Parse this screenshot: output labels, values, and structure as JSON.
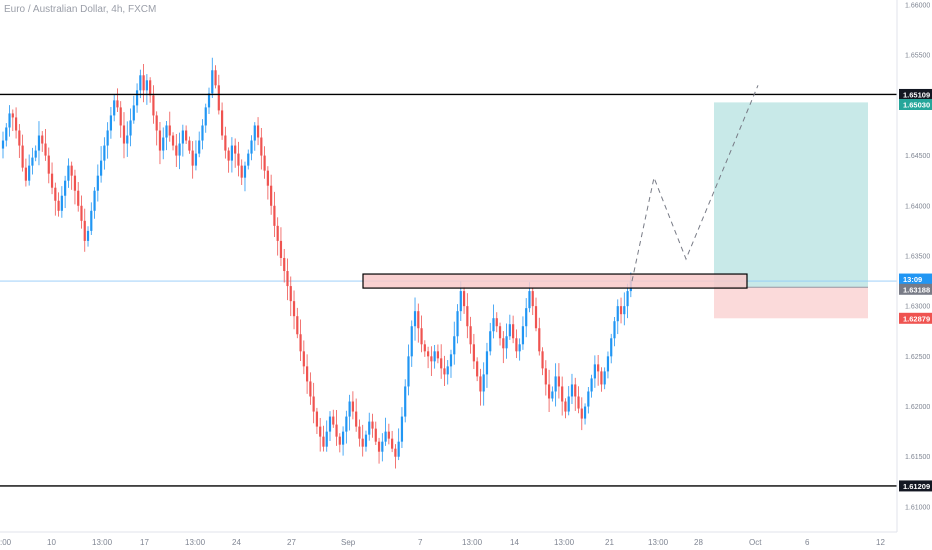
{
  "header": {
    "symbol_title": "Euro / Australian Dollar, 4h, FXCM"
  },
  "colors": {
    "up": "#2196f3",
    "down": "#ef5350",
    "level_line": "#000000",
    "current_line": "#90caf9",
    "target_zone": "#c8e9e8",
    "stop_zone": "#fbdada",
    "resistance_box": "#f8c9c9",
    "tag_black": "#131722",
    "tag_green": "#26a69a",
    "tag_blue": "#2196f3",
    "tag_gray": "#787b86",
    "tag_red": "#ef5350"
  },
  "price_axis": {
    "labels": [
      "1.66000",
      "1.65500",
      "1.65000",
      "1.64500",
      "1.64000",
      "1.63500",
      "1.63000",
      "1.62500",
      "1.62000",
      "1.61500",
      "1.61000"
    ]
  },
  "price_tags": {
    "upper_level": "1.65109",
    "target": "1.65030",
    "countdown": "13:09",
    "entry": "1.63188",
    "stop": "1.62879",
    "lower_level": "1.61209"
  },
  "time_axis": {
    "labels": [
      ":00",
      "10",
      "13:00",
      "17",
      "13:00",
      "24",
      "27",
      "Sep",
      "7",
      "13:00",
      "14",
      "13:00",
      "21",
      "13:00",
      "28",
      "Oct",
      "6",
      "12"
    ]
  },
  "chart_data": {
    "type": "candlestick",
    "title": "Euro / Australian Dollar, 4h, FXCM",
    "y_range": [
      1.6075,
      1.6605
    ],
    "horizontal_levels": [
      1.65109,
      1.61209
    ],
    "current_price": 1.6325,
    "resistance_zone": [
      1.6318,
      1.6332
    ],
    "position": {
      "entry": 1.63188,
      "target": 1.6503,
      "stop": 1.62879
    },
    "projection_path": [
      1.6325,
      1.6428,
      1.6347,
      1.652
    ],
    "grid": false,
    "closes": [
      1.6465,
      1.6478,
      1.6492,
      1.6488,
      1.6475,
      1.646,
      1.6438,
      1.6425,
      1.644,
      1.6448,
      1.6455,
      1.647,
      1.6462,
      1.645,
      1.6432,
      1.6418,
      1.6405,
      1.6395,
      1.641,
      1.6425,
      1.644,
      1.643,
      1.6415,
      1.64,
      1.6385,
      1.6365,
      1.6375,
      1.6395,
      1.6415,
      1.643,
      1.6445,
      1.646,
      1.6475,
      1.649,
      1.6505,
      1.6498,
      1.648,
      1.6462,
      1.647,
      1.6485,
      1.65,
      1.6515,
      1.653,
      1.6515,
      1.6525,
      1.651,
      1.649,
      1.6475,
      1.6455,
      1.6468,
      1.648,
      1.647,
      1.646,
      1.645,
      1.6462,
      1.6475,
      1.6465,
      1.6455,
      1.644,
      1.6452,
      1.6465,
      1.648,
      1.6498,
      1.6512,
      1.6535,
      1.652,
      1.6495,
      1.647,
      1.6455,
      1.6445,
      1.646,
      1.6452,
      1.644,
      1.6428,
      1.644,
      1.6452,
      1.6465,
      1.648,
      1.6468,
      1.645,
      1.6435,
      1.642,
      1.64,
      1.638,
      1.6365,
      1.6348,
      1.6335,
      1.632,
      1.6305,
      1.629,
      1.6272,
      1.6255,
      1.624,
      1.6225,
      1.621,
      1.6195,
      1.618,
      1.617,
      1.616,
      1.6175,
      1.619,
      1.6182,
      1.617,
      1.6162,
      1.6175,
      1.619,
      1.6205,
      1.6195,
      1.618,
      1.6168,
      1.616,
      1.6172,
      1.6185,
      1.6178,
      1.6165,
      1.6155,
      1.6165,
      1.6175,
      1.6168,
      1.6158,
      1.615,
      1.6165,
      1.619,
      1.622,
      1.625,
      1.628,
      1.6295,
      1.6278,
      1.6262,
      1.6255,
      1.625,
      1.6245,
      1.6255,
      1.6248,
      1.6238,
      1.6232,
      1.624,
      1.6252,
      1.627,
      1.6295,
      1.6315,
      1.63,
      1.628,
      1.6262,
      1.6245,
      1.623,
      1.6215,
      1.6232,
      1.6255,
      1.6275,
      1.6288,
      1.628,
      1.6268,
      1.6258,
      1.627,
      1.6282,
      1.6268,
      1.6255,
      1.6262,
      1.628,
      1.6298,
      1.6315,
      1.63,
      1.6278,
      1.6255,
      1.6238,
      1.6222,
      1.6208,
      1.6215,
      1.623,
      1.622,
      1.6205,
      1.6195,
      1.621,
      1.6222,
      1.621,
      1.6198,
      1.6188,
      1.62,
      1.6215,
      1.6228,
      1.6242,
      1.6235,
      1.6222,
      1.6235,
      1.625,
      1.6268,
      1.6285,
      1.63,
      1.6292,
      1.63,
      1.6315,
      1.6325
    ]
  }
}
